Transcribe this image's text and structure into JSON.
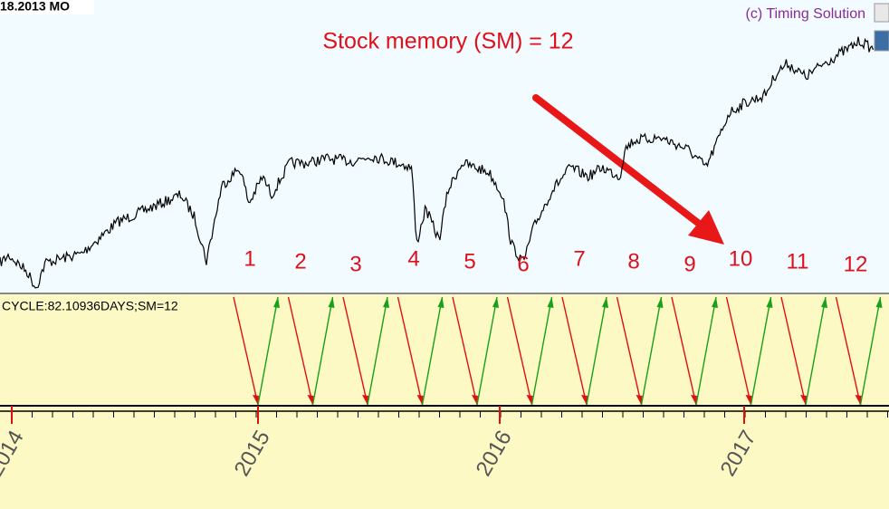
{
  "header": {
    "date_label": "18.2013 MO",
    "copyright": "(c) Timing Solution"
  },
  "annotation": "Stock memory (SM) = 12",
  "cycle_numbers": [
    "1",
    "2",
    "3",
    "4",
    "5",
    "6",
    "7",
    "8",
    "9",
    "10",
    "11",
    "12"
  ],
  "cycle_label": "CYCLE:82.10936DAYS;SM=12",
  "x_axis": {
    "labels": [
      "2014",
      "2015",
      "2016",
      "2017"
    ]
  }
}
